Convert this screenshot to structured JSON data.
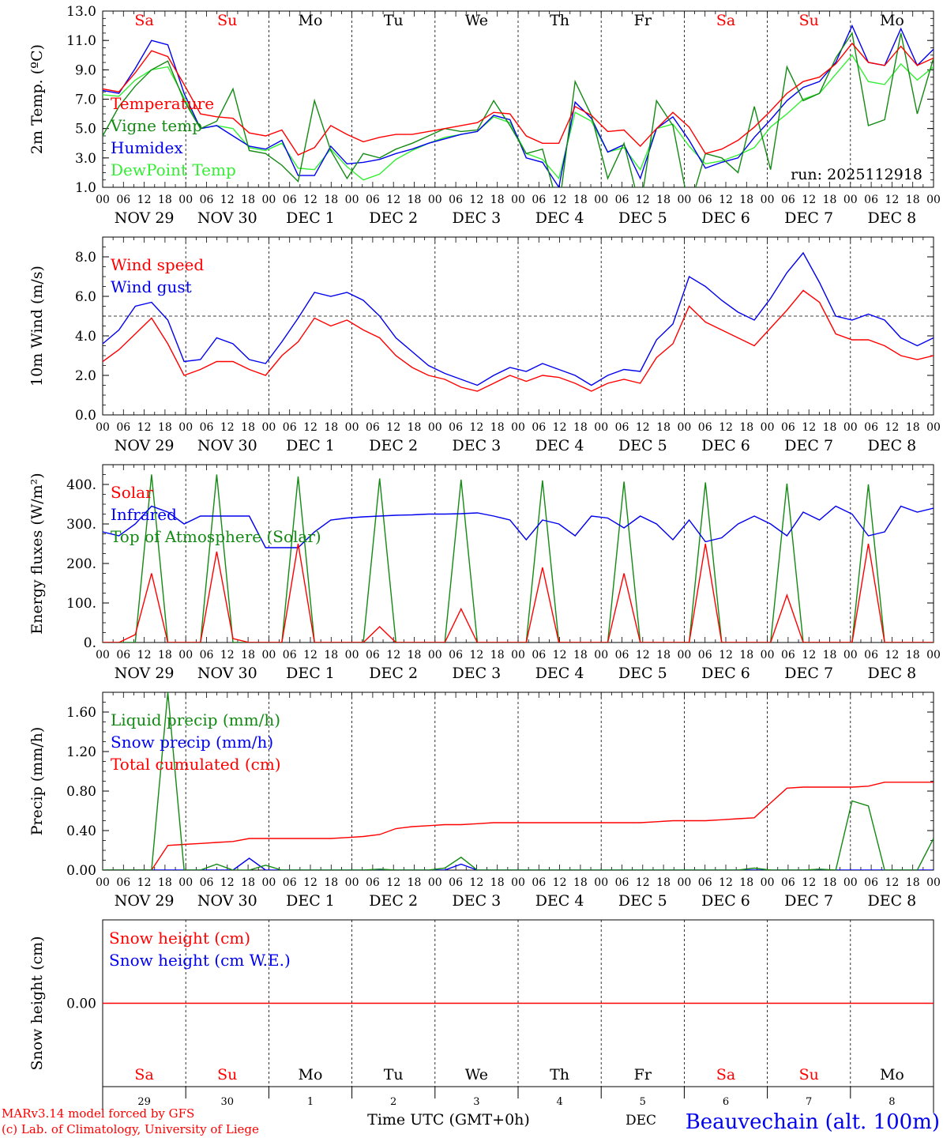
{
  "colors": {
    "red": "#ff0000",
    "green": "#138a13",
    "blue": "#0000ee",
    "lightgreen": "#33ee33",
    "black": "#000000",
    "weekend": "#ff0000"
  },
  "days": [
    {
      "abbr": "Sa",
      "date": "NOV 29",
      "num": "29",
      "weekend": true
    },
    {
      "abbr": "Su",
      "date": "NOV 30",
      "num": "30",
      "weekend": true
    },
    {
      "abbr": "Mo",
      "date": "DEC  1",
      "num": "1",
      "weekend": false
    },
    {
      "abbr": "Tu",
      "date": "DEC  2",
      "num": "2",
      "weekend": false
    },
    {
      "abbr": "We",
      "date": "DEC  3",
      "num": "3",
      "weekend": false
    },
    {
      "abbr": "Th",
      "date": "DEC  4",
      "num": "4",
      "weekend": false
    },
    {
      "abbr": "Fr",
      "date": "DEC  5",
      "num": "5",
      "weekend": false
    },
    {
      "abbr": "Sa",
      "date": "DEC  6",
      "num": "6",
      "weekend": true
    },
    {
      "abbr": "Su",
      "date": "DEC  7",
      "num": "7",
      "weekend": true
    },
    {
      "abbr": "Mo",
      "date": "DEC  8",
      "num": "8",
      "weekend": false
    }
  ],
  "hour_ticks": [
    "00",
    "06",
    "12",
    "18"
  ],
  "final_hour_tick": "00",
  "footer": {
    "model": "MARv3.14 model forced by GFS",
    "lab": "(c) Lab. of Climatology, University of Liege",
    "axis_title": "Time UTC (GMT+0h)",
    "station": "Beauvechain (alt. 100m)",
    "month_overlap": "DEC"
  },
  "chart_data": [
    {
      "id": "temperature",
      "type": "line",
      "ylabel": "2m Temp. (ºC)",
      "ylim": [
        1.0,
        13.0
      ],
      "yticks": [
        "1.0",
        "3.0",
        "5.0",
        "7.0",
        "9.0",
        "11.0",
        "13.0"
      ],
      "ytick_values": [
        1,
        3,
        5,
        7,
        9,
        11,
        13
      ],
      "run_label": "run: 2025112918",
      "series": [
        {
          "name": "Temperature",
          "color": "#ff0000",
          "values": [
            7.7,
            7.5,
            8.8,
            10.3,
            9.9,
            8.0,
            6.0,
            5.8,
            5.7,
            4.7,
            4.5,
            4.9,
            3.2,
            3.7,
            5.2,
            4.6,
            4.1,
            4.4,
            4.6,
            4.6,
            4.8,
            5.0,
            5.2,
            5.4,
            6.1,
            6.0,
            4.5,
            4.0,
            4.0,
            6.5,
            5.9,
            4.8,
            4.9,
            3.8,
            5.0,
            6.1,
            5.1,
            3.3,
            3.6,
            4.2,
            5.1,
            6.2,
            7.4,
            8.2,
            8.5,
            9.4,
            10.8,
            9.5,
            9.3,
            10.6,
            9.3,
            9.8
          ]
        },
        {
          "name": "Vigne temp",
          "color": "#138a13",
          "values": [
            4.5,
            6.5,
            7.9,
            9.0,
            9.6,
            6.9,
            5.0,
            5.5,
            7.7,
            3.5,
            3.3,
            2.5,
            1.4,
            6.9,
            3.5,
            1.6,
            3.3,
            3.0,
            3.6,
            4.0,
            4.5,
            5.0,
            4.8,
            4.9,
            6.9,
            5.2,
            3.3,
            3.6,
            -0.5,
            8.2,
            5.9,
            1.6,
            4.0,
            -0.5,
            6.9,
            5.2,
            -0.5,
            3.3,
            3.0,
            2.0,
            6.5,
            2.2,
            9.2,
            6.9,
            7.4,
            9.8,
            11.5,
            5.2,
            5.6,
            11.5,
            6.0,
            9.8
          ]
        },
        {
          "name": "Humidex",
          "color": "#0000ee",
          "values": [
            7.6,
            7.4,
            9.1,
            11.0,
            10.7,
            7.4,
            5.0,
            5.2,
            4.5,
            3.8,
            3.6,
            4.2,
            1.8,
            1.8,
            3.8,
            2.6,
            2.7,
            2.9,
            3.3,
            3.6,
            4.0,
            4.3,
            4.6,
            4.8,
            5.9,
            5.6,
            3.0,
            2.7,
            1.0,
            6.8,
            5.7,
            3.4,
            3.9,
            1.6,
            5.0,
            5.8,
            4.2,
            2.3,
            2.7,
            3.0,
            4.4,
            5.6,
            6.9,
            7.8,
            8.2,
            9.5,
            12.0,
            9.5,
            9.3,
            11.8,
            9.3,
            10.4
          ]
        },
        {
          "name": "DewPoint Temp",
          "color": "#33ee33",
          "values": [
            7.3,
            7.2,
            8.3,
            9.0,
            9.2,
            7.1,
            5.0,
            5.2,
            5.0,
            3.7,
            3.5,
            4.0,
            2.3,
            2.2,
            3.6,
            2.4,
            1.5,
            1.9,
            2.9,
            3.5,
            4.0,
            4.4,
            4.6,
            4.8,
            5.8,
            5.4,
            3.3,
            2.9,
            1.6,
            6.1,
            5.5,
            3.4,
            3.7,
            2.2,
            5.0,
            5.3,
            3.8,
            2.6,
            2.8,
            3.2,
            3.7,
            5.1,
            6.0,
            7.0,
            7.4,
            8.7,
            10.0,
            8.2,
            8.0,
            9.4,
            8.3,
            9.2
          ]
        }
      ]
    },
    {
      "id": "wind",
      "type": "line",
      "ylabel": "10m Wind (m/s)",
      "ylim": [
        0.0,
        9.0
      ],
      "yticks": [
        "0.0",
        "2.0",
        "4.0",
        "6.0",
        "8.0"
      ],
      "ytick_values": [
        0,
        2,
        4,
        6,
        8
      ],
      "reference_line": 5.0,
      "series": [
        {
          "name": "Wind speed",
          "color": "#ff0000",
          "values": [
            2.7,
            3.3,
            4.1,
            4.9,
            3.6,
            2.0,
            2.3,
            2.7,
            2.7,
            2.3,
            2.0,
            3.0,
            3.7,
            4.9,
            4.5,
            4.8,
            4.3,
            3.9,
            3.0,
            2.4,
            2.0,
            1.8,
            1.4,
            1.2,
            1.6,
            2.0,
            1.7,
            2.0,
            1.9,
            1.6,
            1.2,
            1.6,
            1.8,
            1.6,
            2.9,
            3.6,
            5.5,
            4.7,
            4.3,
            3.9,
            3.5,
            4.4,
            5.3,
            6.3,
            5.7,
            4.1,
            3.8,
            3.8,
            3.5,
            3.0,
            2.8,
            3.0
          ]
        },
        {
          "name": "Wind gust",
          "color": "#0000ee",
          "values": [
            3.6,
            4.3,
            5.5,
            5.7,
            4.8,
            2.7,
            2.8,
            3.9,
            3.6,
            2.8,
            2.6,
            3.7,
            4.9,
            6.2,
            6.0,
            6.2,
            5.8,
            5.0,
            3.9,
            3.2,
            2.5,
            2.1,
            1.8,
            1.5,
            2.0,
            2.4,
            2.2,
            2.6,
            2.3,
            2.0,
            1.5,
            2.0,
            2.3,
            2.2,
            3.8,
            4.6,
            7.0,
            6.5,
            5.8,
            5.2,
            4.8,
            5.9,
            7.2,
            8.2,
            6.7,
            5.0,
            4.8,
            5.1,
            4.8,
            3.9,
            3.5,
            3.9
          ]
        }
      ]
    },
    {
      "id": "energy",
      "type": "line",
      "ylabel": "Energy fluxes (W/m²)",
      "ylim": [
        0,
        450
      ],
      "yticks": [
        "0.",
        "100.",
        "200.",
        "300.",
        "400."
      ],
      "ytick_values": [
        0,
        100,
        200,
        300,
        400
      ],
      "series": [
        {
          "name": "Solar",
          "color": "#ff0000",
          "values": [
            0,
            0,
            20,
            175,
            0,
            0,
            0,
            230,
            10,
            0,
            0,
            0,
            250,
            0,
            0,
            0,
            0,
            40,
            0,
            0,
            0,
            0,
            85,
            0,
            0,
            0,
            0,
            190,
            0,
            0,
            0,
            0,
            175,
            0,
            0,
            0,
            0,
            250,
            0,
            0,
            0,
            0,
            120,
            0,
            0,
            0,
            0,
            250,
            0,
            0,
            0,
            0
          ]
        },
        {
          "name": "Infrared",
          "color": "#0000ee",
          "values": [
            280,
            270,
            300,
            345,
            330,
            300,
            320,
            320,
            320,
            320,
            240,
            240,
            240,
            280,
            310,
            315,
            318,
            320,
            322,
            323,
            325,
            325,
            326,
            328,
            320,
            310,
            260,
            310,
            300,
            270,
            320,
            315,
            290,
            320,
            300,
            260,
            310,
            255,
            265,
            300,
            320,
            300,
            270,
            330,
            310,
            345,
            325,
            270,
            280,
            345,
            330,
            340
          ]
        },
        {
          "name": "Top of Atmosphere (Solar)",
          "color": "#138a13",
          "values": [
            0,
            0,
            0,
            425,
            0,
            0,
            0,
            425,
            0,
            0,
            0,
            0,
            420,
            0,
            0,
            0,
            0,
            415,
            0,
            0,
            0,
            0,
            412,
            0,
            0,
            0,
            0,
            410,
            0,
            0,
            0,
            0,
            407,
            0,
            0,
            0,
            0,
            405,
            0,
            0,
            0,
            0,
            402,
            0,
            0,
            0,
            0,
            400,
            0,
            0,
            0,
            0
          ]
        }
      ]
    },
    {
      "id": "precip",
      "type": "line",
      "ylabel": "Precip (mm/h)",
      "ylim": [
        0,
        1.8
      ],
      "yticks": [
        "0.00",
        "0.40",
        "0.80",
        "1.20",
        "1.60"
      ],
      "ytick_values": [
        0,
        0.4,
        0.8,
        1.2,
        1.6
      ],
      "series": [
        {
          "name": "Liquid precip (mm/h)",
          "color": "#138a13",
          "values": [
            0,
            0,
            0,
            0,
            1.8,
            0,
            0,
            0.06,
            0,
            0,
            0.05,
            0,
            0,
            0,
            0,
            0,
            0,
            0.01,
            0,
            0,
            0,
            0.02,
            0.13,
            0,
            0,
            0,
            0,
            0,
            0,
            0,
            0,
            0,
            0,
            0,
            0,
            0,
            0,
            0,
            0,
            0,
            0.02,
            0,
            0,
            0,
            0.01,
            0,
            0.7,
            0.65,
            0,
            0,
            0,
            0.32
          ]
        },
        {
          "name": "Snow precip (mm/h)",
          "color": "#0000ee",
          "values": [
            0,
            0,
            0,
            0,
            0,
            0,
            0,
            0,
            0,
            0.12,
            0,
            0,
            0,
            0,
            0,
            0,
            0,
            0,
            0,
            0,
            0,
            0,
            0.06,
            0,
            0,
            0,
            0,
            0,
            0,
            0,
            0,
            0,
            0,
            0,
            0,
            0,
            0,
            0,
            0,
            0,
            0,
            0,
            0,
            0,
            0,
            0,
            0,
            0,
            0,
            0,
            0,
            0
          ]
        },
        {
          "name": "Total cumulated (cm)",
          "color": "#ff0000",
          "values": [
            0,
            0,
            0,
            0,
            0.25,
            0.26,
            0.27,
            0.28,
            0.29,
            0.32,
            0.32,
            0.32,
            0.32,
            0.32,
            0.32,
            0.33,
            0.34,
            0.36,
            0.42,
            0.44,
            0.45,
            0.46,
            0.46,
            0.47,
            0.48,
            0.48,
            0.48,
            0.48,
            0.48,
            0.48,
            0.48,
            0.48,
            0.48,
            0.48,
            0.49,
            0.5,
            0.5,
            0.5,
            0.51,
            0.52,
            0.53,
            0.68,
            0.83,
            0.84,
            0.84,
            0.84,
            0.84,
            0.85,
            0.89,
            0.89,
            0.89,
            0.89
          ]
        }
      ]
    },
    {
      "id": "snow",
      "type": "line",
      "ylabel": "Snow height (cm)",
      "ylim": [
        -1,
        1
      ],
      "yticks": [
        "0.00"
      ],
      "ytick_values": [
        0
      ],
      "series": [
        {
          "name": "Snow height (cm)",
          "color": "#ff0000",
          "values": [
            0,
            0,
            0,
            0,
            0,
            0,
            0,
            0,
            0,
            0,
            0,
            0,
            0,
            0,
            0,
            0,
            0,
            0,
            0,
            0,
            0,
            0,
            0,
            0,
            0,
            0,
            0,
            0,
            0,
            0,
            0,
            0,
            0,
            0,
            0,
            0,
            0,
            0,
            0,
            0,
            0,
            0,
            0,
            0,
            0,
            0,
            0,
            0,
            0,
            0,
            0,
            0
          ]
        },
        {
          "name": "Snow height (cm W.E.)",
          "color": "#0000ee",
          "values": []
        }
      ]
    }
  ]
}
